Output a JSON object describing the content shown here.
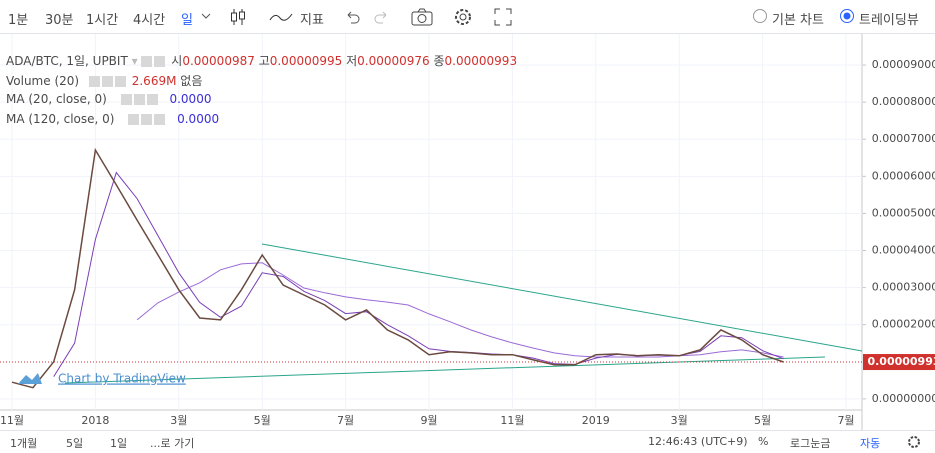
{
  "toolbar": {
    "intervals": [
      "1분",
      "30분",
      "1시간",
      "4시간",
      "일"
    ],
    "indicators": "지표",
    "modes": [
      "기본 차트",
      "트레이딩뷰"
    ]
  },
  "footer": {
    "ranges": [
      "1개월",
      "5일",
      "1일",
      "...로 가기"
    ],
    "time": "12:46:43 (UTC+9)",
    "percent": "%",
    "log": "로그눈금",
    "auto": "자동"
  },
  "chart_data": {
    "type": "line",
    "watermark": "Chart by TradingView",
    "ohlc": [
      {
        "label": "시",
        "value": "0.00000987"
      },
      {
        "label": "고",
        "value": "0.00000995"
      },
      {
        "label": "저",
        "value": "0.00000976"
      },
      {
        "label": "종",
        "value": "0.00000993"
      }
    ],
    "volume": {
      "name": "Volume (20)",
      "value": "2.669M",
      "note": "없음"
    },
    "categories": [
      "11월",
      null,
      null,
      null,
      "2018",
      null,
      null,
      null,
      "3월",
      null,
      null,
      null,
      "5월",
      null,
      null,
      null,
      "7월",
      null,
      null,
      null,
      "9월",
      null,
      null,
      null,
      "11월",
      null,
      null,
      null,
      "2019",
      null,
      null,
      null,
      "3월",
      null,
      null,
      null,
      "5월",
      null,
      null,
      null,
      "7월"
    ],
    "series": [
      {
        "name": "ADA/BTC, 1일, UPBIT",
        "color": "#6b4a3f",
        "values": [
          4.5e-06,
          3e-06,
          1e-05,
          2.94e-05,
          6.71e-05,
          5.77e-05,
          4.82e-05,
          3.88e-05,
          2.94e-05,
          2.18e-05,
          2.13e-05,
          2.94e-05,
          3.88e-05,
          3.07e-05,
          2.8e-05,
          2.53e-05,
          2.13e-05,
          2.4e-05,
          1.86e-05,
          1.59e-05,
          1.19e-05,
          1.27e-05,
          1.24e-05,
          1.19e-05,
          1.19e-05,
          1.05e-05,
          9.2e-06,
          9.2e-06,
          1.19e-05,
          1.21e-05,
          1.16e-05,
          1.19e-05,
          1.16e-05,
          1.32e-05,
          1.86e-05,
          1.59e-05,
          1.19e-05,
          9.93e-06,
          null,
          null,
          null
        ]
      },
      {
        "name": "MA (20, close, 0)",
        "legend_value": "0.0000",
        "color": "#7b3fb5",
        "values": [
          null,
          null,
          6e-06,
          1.5e-05,
          4.3e-05,
          6.1e-05,
          5.4e-05,
          4.4e-05,
          3.4e-05,
          2.6e-05,
          2.2e-05,
          2.5e-05,
          3.4e-05,
          3.3e-05,
          2.9e-05,
          2.65e-05,
          2.3e-05,
          2.35e-05,
          2e-05,
          1.7e-05,
          1.35e-05,
          1.28e-05,
          1.25e-05,
          1.21e-05,
          1.19e-05,
          1.1e-05,
          9.5e-06,
          9.3e-06,
          1.1e-05,
          1.2e-05,
          1.17e-05,
          1.18e-05,
          1.17e-05,
          1.28e-05,
          1.7e-05,
          1.65e-05,
          1.3e-05,
          1.08e-05,
          null,
          null,
          null
        ]
      },
      {
        "name": "MA (120, close, 0)",
        "legend_value": "0.0000",
        "color": "#9b6bd6",
        "values": [
          null,
          null,
          null,
          null,
          null,
          null,
          2.13e-05,
          2.59e-05,
          2.88e-05,
          3.13e-05,
          3.48e-05,
          3.64e-05,
          3.67e-05,
          3.34e-05,
          2.99e-05,
          2.86e-05,
          2.75e-05,
          2.67e-05,
          2.61e-05,
          2.53e-05,
          2.29e-05,
          2.08e-05,
          1.86e-05,
          1.67e-05,
          1.51e-05,
          1.37e-05,
          1.24e-05,
          1.16e-05,
          1.13e-05,
          1.13e-05,
          1.13e-05,
          1.13e-05,
          1.16e-05,
          1.19e-05,
          1.27e-05,
          1.32e-05,
          1.24e-05,
          1.13e-05,
          null,
          null,
          null
        ]
      }
    ],
    "ylim": [
      -3e-06,
      9.46e-05
    ],
    "yticks": [
      {
        "value": 0,
        "label": "0.00000000"
      },
      {
        "value": 2e-05,
        "label": "0.00002000"
      },
      {
        "value": 3e-05,
        "label": "0.00003000"
      },
      {
        "value": 4e-05,
        "label": "0.00004000"
      },
      {
        "value": 5e-05,
        "label": "0.00005000"
      },
      {
        "value": 6e-05,
        "label": "0.00006000"
      },
      {
        "value": 7e-05,
        "label": "0.00007000"
      },
      {
        "value": 8e-05,
        "label": "0.00008000"
      },
      {
        "value": 9e-05,
        "label": "0.00009000"
      }
    ],
    "grid": true,
    "price_line_color": "#d0312d"
  }
}
